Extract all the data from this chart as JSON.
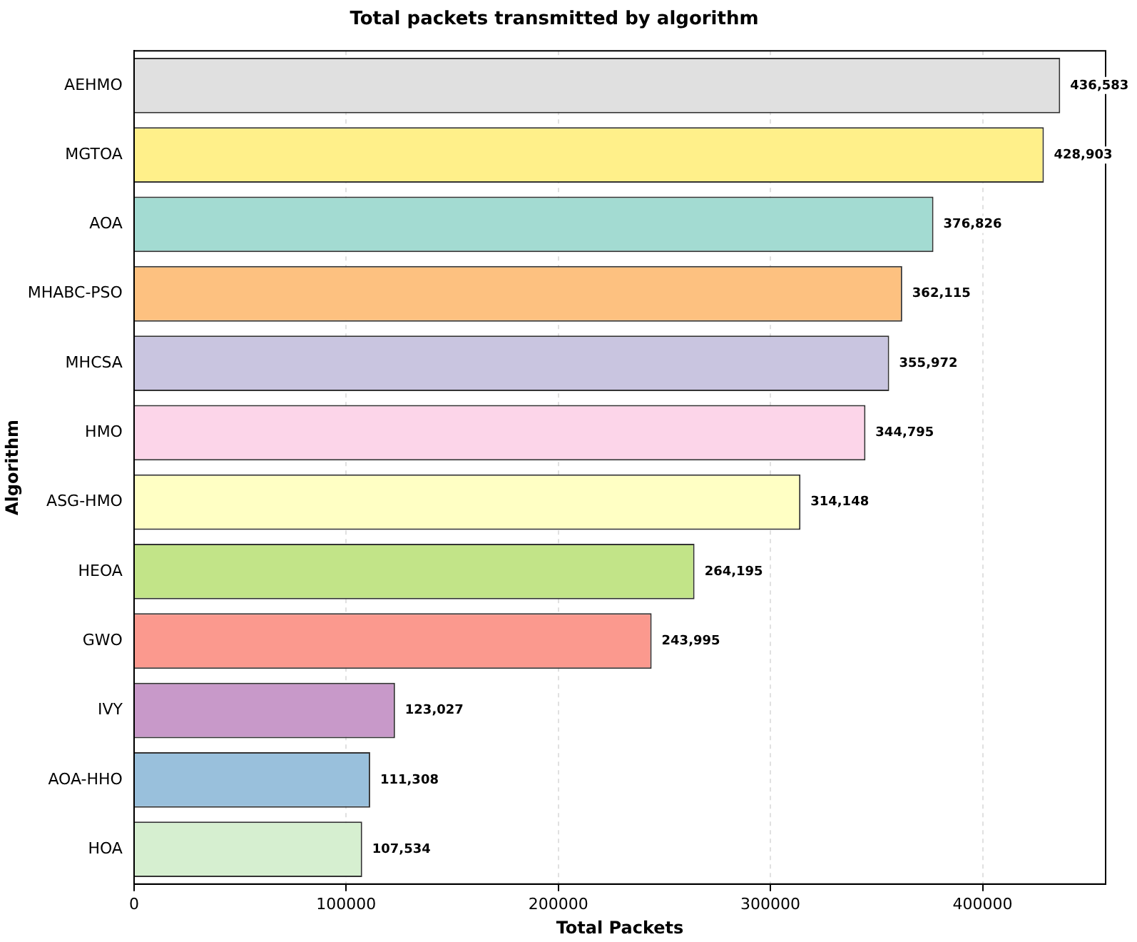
{
  "chart_data": {
    "type": "bar",
    "orientation": "horizontal",
    "title": "Total packets transmitted by algorithm",
    "xlabel": "Total Packets",
    "ylabel": "Algorithm",
    "categories": [
      "AEHMO",
      "MGTOA",
      "AOA",
      "MHABC-PSO",
      "MHCSA",
      "HMO",
      "ASG-HMO",
      "HEOA",
      "GWO",
      "IVY",
      "AOA-HHO",
      "HOA"
    ],
    "values": [
      436583,
      428903,
      376826,
      362115,
      355972,
      344795,
      314148,
      264195,
      243995,
      123027,
      111308,
      107534
    ],
    "value_labels": [
      "436,583",
      "428,903",
      "376,826",
      "362,115",
      "355,972",
      "344,795",
      "314,148",
      "264,195",
      "243,995",
      "123,027",
      "111,308",
      "107,534"
    ],
    "colors": [
      "#e0e0e0",
      "#fff08a",
      "#a3dbd2",
      "#fdc180",
      "#c9c5e0",
      "#fcd5e9",
      "#ffffc4",
      "#c2e488",
      "#fb998e",
      "#c899c9",
      "#99c0dc",
      "#d6efd0"
    ],
    "xlim": [
      0,
      458000
    ],
    "xticks": [
      0,
      100000,
      200000,
      300000,
      400000
    ],
    "grid": "x",
    "legend": false
  }
}
